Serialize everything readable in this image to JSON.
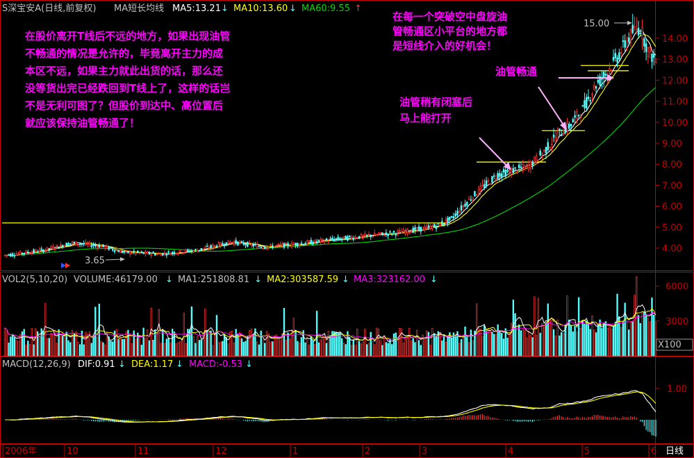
{
  "colors": {
    "up": "#ff3232",
    "down": "#54ffff",
    "ma5": "#ffffff",
    "ma10": "#ffff00",
    "ma60": "#00d800",
    "ma_vol3": "#ff00ff",
    "annotation": "#ff00ff",
    "frame": "#c80000",
    "text": "#c0c0c0",
    "flatline": "#ffff00"
  },
  "price_header": {
    "title": "S深宝安A(日线,前复权)",
    "indicator": "MA短长均线",
    "ma5": "MA5:13.21",
    "ma5_arrow": "↓",
    "ma10": "MA10:13.60",
    "ma10_arrow": "↓",
    "ma60": "MA60:9.55",
    "ma60_arrow": "↑"
  },
  "volume_header": {
    "title": "VOL2(5,10,20)",
    "volume": "VOLUME:46179.00",
    "volume_arrow": "↓",
    "ma1": "MA1:251808.81",
    "ma1_arrow": "↓",
    "ma2": "MA2:303587.59",
    "ma2_arrow": "↓",
    "ma3": "MA3:323162.00",
    "ma3_arrow": "↓"
  },
  "macd_header": {
    "title": "MACD(12,26,9)",
    "dif": "DIF:0.91",
    "dif_arrow": "↓",
    "dea": "DEA:1.17",
    "dea_arrow": "↓",
    "macd": "MACD:-0.53",
    "macd_arrow": "↓"
  },
  "annotations": {
    "left_note": [
      "在股价离开T线后不远的地方，如果出现油管",
      "不畅通的情况是允许的，毕竟离开主力的成",
      "本区不远，如果主力就此出货的话，那么还",
      "没等货出完已经跌回到T线上了，这样的话岂",
      "不是无利可图了？但股价到达中、高位置后",
      "就应该保持油管畅通了！"
    ],
    "top_note": [
      "在每一个突破空中盘旋油",
      "管畅通区小平台的地方都",
      "是短线介入的好机会！"
    ],
    "mid_note": [
      "油管稍有闭塞后",
      "马上能打开"
    ],
    "right_note": "油管畅通"
  },
  "price_labels": {
    "high": "15.00",
    "low": "3.65"
  },
  "price_axis": [
    "14.00",
    "13.00",
    "12.00",
    "11.00",
    "10.00",
    "9.00",
    "8.00",
    "7.00",
    "6.00",
    "5.00",
    "4.00"
  ],
  "volume_axis": [
    "6000",
    "3000"
  ],
  "volume_unit": "X100",
  "macd_axis": [
    "1.00"
  ],
  "date_axis": [
    "2006年",
    "10",
    "11",
    "12",
    "1",
    "2",
    "3",
    "4",
    "5",
    "6"
  ],
  "period_label": "日线"
}
